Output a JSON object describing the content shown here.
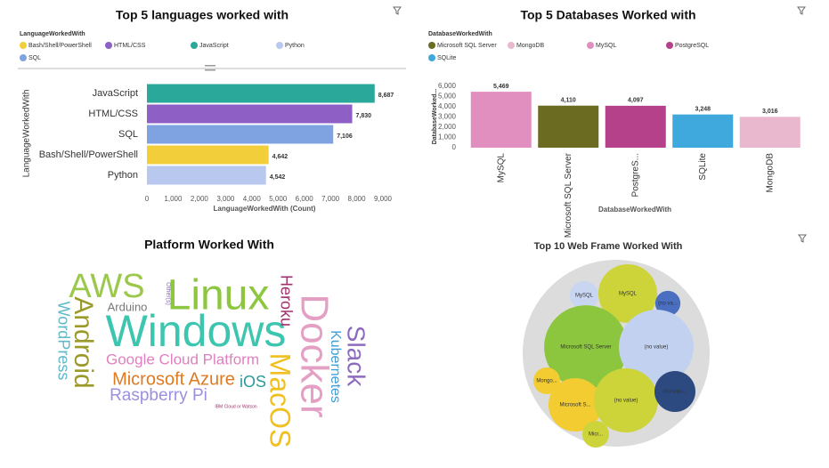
{
  "chart_data": [
    {
      "type": "hbar",
      "title": "Top 5 languages worked with",
      "legend_title": "LanguageWorkedWith",
      "legend": [
        {
          "name": "Bash/Shell/PowerShell",
          "color": "#f2cf3a"
        },
        {
          "name": "HTML/CSS",
          "color": "#8e5fc4"
        },
        {
          "name": "JavaScript",
          "color": "#2aa89a"
        },
        {
          "name": "Python",
          "color": "#b9c8ee"
        },
        {
          "name": "SQL",
          "color": "#7fa3e0"
        }
      ],
      "categories": [
        "JavaScript",
        "HTML/CSS",
        "SQL",
        "Bash/Shell/PowerShell",
        "Python"
      ],
      "values": [
        8687,
        7830,
        7106,
        4642,
        4542
      ],
      "value_labels": [
        "8,687",
        "7,830",
        "7,106",
        "4,642",
        "4,542"
      ],
      "colors": [
        "#2aa89a",
        "#8e5fc4",
        "#7fa3e0",
        "#f2cf3a",
        "#b9c8ee"
      ],
      "xlabel": "LanguageWorkedWith (Count)",
      "ylabel": "LanguageWorkedWith",
      "xlim": [
        0,
        9000
      ],
      "xticks": [
        0,
        {
          "value": 1000,
          "label": "1,000"
        },
        {
          "value": 2000,
          "label": "2,000"
        },
        {
          "value": 3000,
          "label": "3,000"
        },
        {
          "value": 4000,
          "label": "4,000"
        },
        {
          "value": 5000,
          "label": "5,000"
        },
        {
          "value": 6000,
          "label": "6,000"
        },
        {
          "value": 7000,
          "label": "7,000"
        },
        {
          "value": 8000,
          "label": "8,000"
        },
        {
          "value": 9000,
          "label": "9,000"
        }
      ]
    },
    {
      "type": "bar",
      "title": "Top 5 Databases Worked with",
      "legend_title": "DatabaseWorkedWith",
      "legend": [
        {
          "name": "Microsoft SQL Server",
          "color": "#6b6b22"
        },
        {
          "name": "MongoDB",
          "color": "#e9b8cf"
        },
        {
          "name": "MySQL",
          "color": "#e08fbf"
        },
        {
          "name": "PostgreSQL",
          "color": "#b5418a"
        },
        {
          "name": "SQLite",
          "color": "#3fa8dc"
        }
      ],
      "categories": [
        "MySQL",
        "Microsoft SQL Server",
        "PostgreS...",
        "SQLite",
        "MongoDB"
      ],
      "values": [
        5469,
        4110,
        4097,
        3248,
        3016
      ],
      "value_labels": [
        "5,469",
        "4,110",
        "4,097",
        "3,248",
        "3,016"
      ],
      "colors": [
        "#e08fbf",
        "#6b6b22",
        "#b5418a",
        "#3fa8dc",
        "#e9b8cf"
      ],
      "xlabel": "DatabaseWorkedWith",
      "ylabel": "DatabaseWorked...",
      "ylim": [
        0,
        6000
      ],
      "yticks": [
        0,
        {
          "value": 1000,
          "label": "1,000"
        },
        {
          "value": 2000,
          "label": "2,000"
        },
        {
          "value": 3000,
          "label": "3,000"
        },
        {
          "value": 4000,
          "label": "4,000"
        },
        {
          "value": 5000,
          "label": "5,000"
        },
        {
          "value": 6000,
          "label": "6,000"
        }
      ]
    },
    {
      "type": "wordcloud",
      "title": "Platform Worked With",
      "words": [
        {
          "text": "AWS",
          "color": "#9bc84a"
        },
        {
          "text": "Linux",
          "color": "#8dc63f"
        },
        {
          "text": "Windows",
          "color": "#3cc6b0"
        },
        {
          "text": "Android",
          "color": "#9a9a2a"
        },
        {
          "text": "Arduino",
          "color": "#777777"
        },
        {
          "text": "WordPress",
          "color": "#5fb8c8"
        },
        {
          "text": "Other(s)",
          "color": "#8e6bbf"
        },
        {
          "text": "Heroku",
          "color": "#a0306c"
        },
        {
          "text": "Docker",
          "color": "#e4a0c4"
        },
        {
          "text": "Slack",
          "color": "#8e6bbf"
        },
        {
          "text": "Kubernetes",
          "color": "#3f9ed8"
        },
        {
          "text": "Google Cloud Platform",
          "color": "#e080c0"
        },
        {
          "text": "Microsoft Azure",
          "color": "#e07a20"
        },
        {
          "text": "iOS",
          "color": "#2a9a9a"
        },
        {
          "text": "MacOS",
          "color": "#f0c020"
        },
        {
          "text": "Raspberry Pi",
          "color": "#9c8fe0"
        },
        {
          "text": "IBM Cloud or Watson",
          "color": "#a0306c"
        }
      ]
    },
    {
      "type": "pack",
      "title": "Top 10 Web Frame Worked With",
      "labels": [
        "MySQL",
        "MySQL",
        "(no va...",
        "Microsoft SQL Server",
        "(no value)",
        "Mongo...",
        "Microsoft S...",
        "(no value)",
        "(no valu...",
        "Micr..."
      ],
      "values": [
        260,
        1090,
        200,
        2200,
        1760,
        225,
        900,
        1300,
        530,
        225
      ],
      "colors": [
        "#c9d6f2",
        "#cdd43a",
        "#4a6fc0",
        "#8cc63f",
        "#c2d1f0",
        "#f2cc30",
        "#f2cc30",
        "#cdd43a",
        "#2c4a80",
        "#cdd43a"
      ]
    }
  ]
}
